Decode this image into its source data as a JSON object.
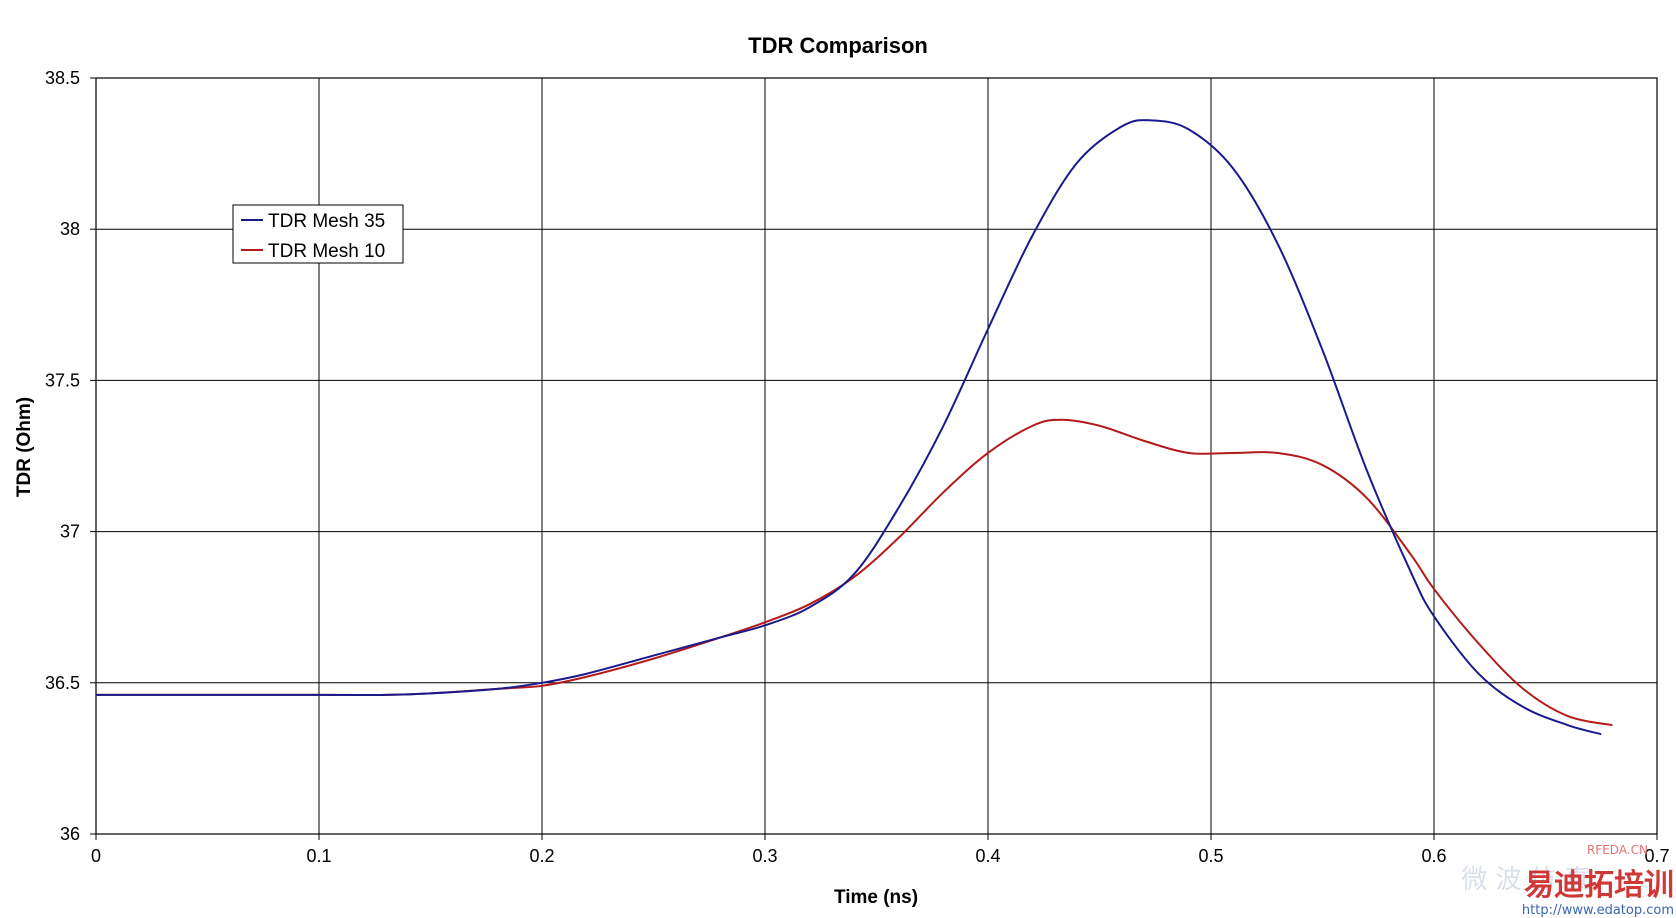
{
  "chart_data": {
    "type": "line",
    "title": "TDR Comparison",
    "xlabel": "Time (ns)",
    "ylabel": "TDR (Ohm)",
    "xlim": [
      0,
      0.7
    ],
    "ylim": [
      36,
      38.5
    ],
    "x_ticks": [
      "0",
      "0.1",
      "0.2",
      "0.3",
      "0.4",
      "0.5",
      "0.6",
      "0.7"
    ],
    "y_ticks": [
      "36",
      "36.5",
      "37",
      "37.5",
      "38",
      "38.5"
    ],
    "grid": true,
    "legend_position": "upper-left",
    "series": [
      {
        "name": "TDR Mesh 35",
        "color": "#1a1a8c",
        "x": [
          0,
          0.1,
          0.13,
          0.15,
          0.18,
          0.2,
          0.22,
          0.25,
          0.28,
          0.3,
          0.32,
          0.34,
          0.36,
          0.38,
          0.4,
          0.42,
          0.44,
          0.46,
          0.473,
          0.49,
          0.51,
          0.53,
          0.55,
          0.57,
          0.59,
          0.6,
          0.62,
          0.64,
          0.66,
          0.675
        ],
        "y": [
          36.46,
          36.46,
          36.46,
          36.465,
          36.48,
          36.5,
          36.53,
          36.59,
          36.65,
          36.69,
          36.75,
          36.86,
          37.08,
          37.35,
          37.67,
          37.98,
          38.22,
          38.34,
          38.36,
          38.33,
          38.2,
          37.95,
          37.6,
          37.2,
          36.86,
          36.72,
          36.53,
          36.42,
          36.36,
          36.33
        ]
      },
      {
        "name": "TDR Mesh 10",
        "color": "#b31b1b",
        "x": [
          0,
          0.1,
          0.13,
          0.15,
          0.18,
          0.2,
          0.22,
          0.25,
          0.28,
          0.3,
          0.32,
          0.34,
          0.36,
          0.38,
          0.4,
          0.42,
          0.433,
          0.45,
          0.47,
          0.49,
          0.51,
          0.53,
          0.55,
          0.57,
          0.59,
          0.6,
          0.62,
          0.64,
          0.66,
          0.68
        ],
        "y": [
          36.46,
          36.46,
          36.46,
          36.465,
          36.48,
          36.49,
          36.52,
          36.58,
          36.65,
          36.7,
          36.76,
          36.85,
          36.98,
          37.13,
          37.26,
          37.35,
          37.37,
          37.35,
          37.3,
          37.26,
          37.26,
          37.26,
          37.22,
          37.11,
          36.92,
          36.81,
          36.63,
          36.48,
          36.39,
          36.36
        ]
      }
    ]
  },
  "watermark": {
    "site_label": "RFEDA.CN",
    "chinese_text": "易迪拓培训",
    "faint_text": "微 波 仿 真",
    "url": "http://www.edatop.com"
  }
}
